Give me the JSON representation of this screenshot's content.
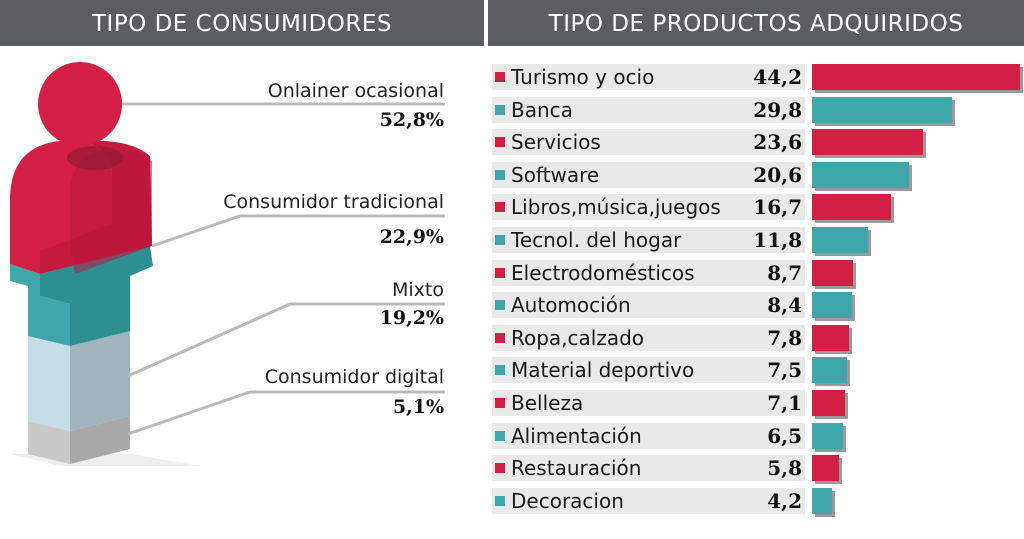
{
  "headers": {
    "left": "TIPO DE CONSUMIDORES",
    "right": "TIPO DE PRODUCTOS ADQUIRIDOS"
  },
  "colors": {
    "crimson": "#d41f45",
    "teal": "#3fa7ab",
    "header_bg": "#5b5e61",
    "light_blue": "#c5dde6",
    "gray": "#a9a9a9"
  },
  "consumers": [
    {
      "label": "Onlainer ocasional",
      "pct": "52,8%"
    },
    {
      "label": "Consumidor tradicional",
      "pct": "22,9%"
    },
    {
      "label": "Mixto",
      "pct": "19,2%"
    },
    {
      "label": "Consumidor digital",
      "pct": "5,1%"
    }
  ],
  "chart_data": {
    "type": "bar",
    "orientation": "horizontal",
    "categories": [
      "Turismo y ocio",
      "Banca",
      "Servicios",
      "Software",
      "Libros,música,juegos",
      "Tecnol. del hogar",
      "Electrodomésticos",
      "Automoción",
      "Ropa,calzado",
      "Material deportivo",
      "Belleza",
      "Alimentación",
      "Restauración",
      "Decoracion"
    ],
    "values": [
      44.2,
      29.8,
      23.6,
      20.6,
      16.7,
      11.8,
      8.7,
      8.4,
      7.8,
      7.5,
      7.1,
      6.5,
      5.8,
      4.2
    ],
    "value_labels": [
      "44,2",
      "29,8",
      "23,6",
      "20,6",
      "16,7",
      "11,8",
      "8,7",
      "8,4",
      "7,8",
      "7,5",
      "7,1",
      "6,5",
      "5,8",
      "4,2"
    ],
    "bar_colors": [
      "#d41f45",
      "#3fa7ab",
      "#d41f45",
      "#3fa7ab",
      "#d41f45",
      "#3fa7ab",
      "#d41f45",
      "#3fa7ab",
      "#d41f45",
      "#3fa7ab",
      "#d41f45",
      "#3fa7ab",
      "#d41f45",
      "#3fa7ab"
    ],
    "xlim": [
      0,
      44.2
    ],
    "grid": false,
    "legend": "none"
  }
}
